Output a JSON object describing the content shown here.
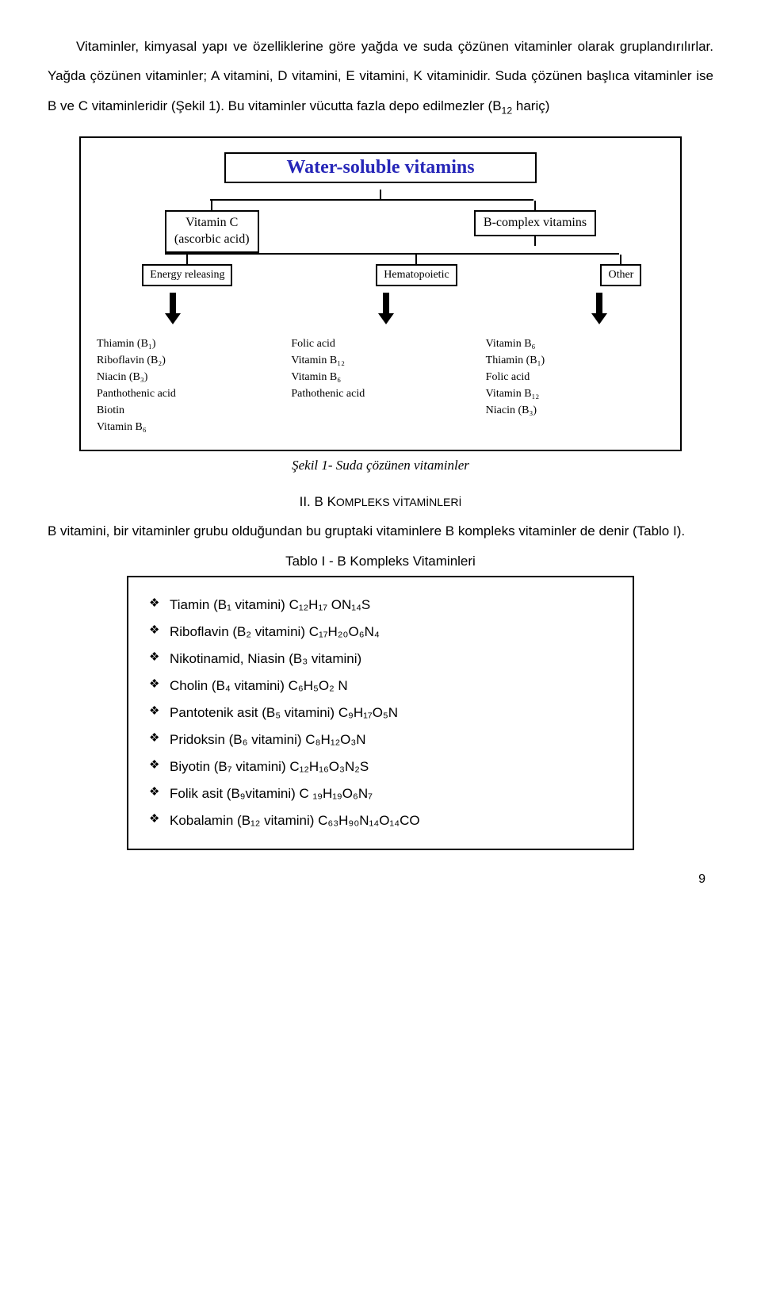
{
  "paragraphs": {
    "p1a": "Vitaminler, kimyasal yapı ve özelliklerine göre yağda ve suda çözünen vitaminler olarak gruplandırılırlar. Yağda çözünen vitaminler; A vitamini, D vitamini, E vitamini, K vitaminidir. Suda çözünen başlıca vitaminler ise B ve C vitaminleridir (Şekil 1). Bu vitaminler vücutta fazla depo edilmezler (B",
    "p1sub": "12",
    "p1b": " hariç)"
  },
  "diagram": {
    "title": "Water-soluble vitamins",
    "title_color": "#2727b8",
    "row2": {
      "left_l1": "Vitamin C",
      "left_l2": "(ascorbic acid)",
      "right": "B-complex vitamins"
    },
    "row3": {
      "c1": "Energy releasing",
      "c2": "Hematopoietic",
      "c3": "Other"
    },
    "columns": [
      {
        "lines": [
          "Thiamin (B₁)",
          "Riboflavin (B₂)",
          "Niacin (B₃)",
          "Panthothenic acid",
          "Biotin",
          "Vitamin B₆"
        ]
      },
      {
        "lines": [
          "Folic acid",
          "Vitamin B₁₂",
          "Vitamin B₆",
          "Pathothenic acid"
        ]
      },
      {
        "lines": [
          "Vitamin B₆",
          "Thiamin (B₁)",
          "Folic acid",
          "Vitamin B₁₂",
          "Niacin (B₃)"
        ]
      }
    ]
  },
  "caption": "Şekil 1- Suda çözünen vitaminler",
  "section": {
    "num": "II.",
    "title_strong": "B K",
    "title_rest": "OMPLEKS VİTAMİNLERİ"
  },
  "section_para": "B vitamini, bir vitaminler grubu olduğundan bu gruptaki vitaminlere B kompleks vitaminler de denir (Tablo I).",
  "tablo_title": "Tablo I - B Kompleks Vitaminleri",
  "tablo_items": [
    "Tiamin (B₁ vitamini)  C₁₂H₁₇ ON₁₄S",
    "Riboflavin (B₂ vitamini)  C₁₇H₂₀O₆N₄",
    "Nikotinamid, Niasin (B₃ vitamini)",
    "Cholin (B₄  vitamini)  C₆H₅O₂ N",
    "Pantotenik asit (B₅ vitamini)  C₉H₁₇O₅N",
    "Pridoksin (B₆ vitamini)  C₈H₁₂O₃N",
    "Biyotin (B₇ vitamini)  C₁₂H₁₆O₃N₂S",
    "Folik asit  (B₉vitamini)  C ₁₉H₁₉O₆N₇",
    "Kobalamin  (B₁₂ vitamini)  C₆₃H₉₀N₁₄O₁₄CO"
  ],
  "pagenum": "9"
}
